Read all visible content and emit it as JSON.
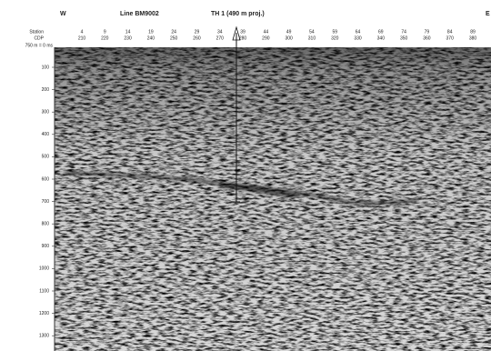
{
  "header": {
    "west": "W",
    "line": "Line BM9002",
    "borehole": "TH 1 (490 m proj.)",
    "east": "E"
  },
  "axis": {
    "station_label": "Station",
    "cdp_label": "CDP",
    "datum_label": "750 m = 0 ms",
    "stations": [
      "4",
      "9",
      "14",
      "19",
      "24",
      "29",
      "34",
      "39",
      "44",
      "49",
      "54",
      "59",
      "64",
      "69",
      "74",
      "79",
      "84",
      "89"
    ],
    "cdps": [
      "210",
      "220",
      "230",
      "240",
      "250",
      "260",
      "270",
      "280",
      "290",
      "300",
      "310",
      "320",
      "330",
      "340",
      "350",
      "360",
      "370",
      "380"
    ],
    "times": [
      "100",
      "200",
      "300",
      "400",
      "500",
      "600",
      "700",
      "800",
      "900",
      "1000",
      "1100",
      "1200",
      "1300"
    ]
  }
}
